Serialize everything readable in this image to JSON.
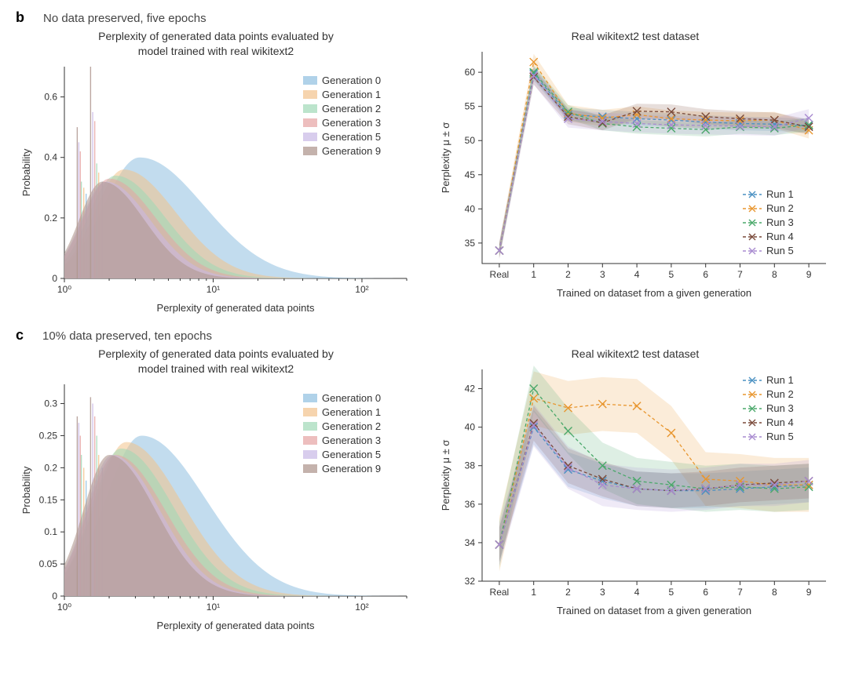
{
  "panel_b": {
    "label": "b",
    "subtitle": "No data preserved, five epochs",
    "hist": {
      "type": "histogram",
      "title": "Perplexity of generated data points evaluated by\nmodel trained with real wikitext2",
      "xlabel": "Perplexity of generated data points",
      "ylabel": "Probability",
      "x_scale": "log",
      "xlim": [
        1,
        200
      ],
      "x_ticks": [
        1,
        10,
        100
      ],
      "x_tick_labels": [
        "10⁰",
        "10¹",
        "10²"
      ],
      "ylim": [
        0,
        0.7
      ],
      "y_ticks": [
        0,
        0.2,
        0.4,
        0.6
      ],
      "background_color": "#ffffff",
      "legend_pos": "upper-right",
      "series": [
        {
          "name": "Generation 0",
          "color": "#8fbfe0",
          "alpha": 0.55,
          "mode": 3.2,
          "spread": 0.55,
          "peak": 0.4,
          "spikes": [
            [
              1.4,
              0.28
            ],
            [
              1.8,
              0.32
            ]
          ]
        },
        {
          "name": "Generation 1",
          "color": "#f2c28b",
          "alpha": 0.55,
          "mode": 2.5,
          "spread": 0.45,
          "peak": 0.36,
          "spikes": [
            [
              1.35,
              0.3
            ],
            [
              1.7,
              0.35
            ]
          ]
        },
        {
          "name": "Generation 2",
          "color": "#9fd8b6",
          "alpha": 0.55,
          "mode": 2.2,
          "spread": 0.42,
          "peak": 0.34,
          "spikes": [
            [
              1.3,
              0.32
            ],
            [
              1.65,
              0.38
            ]
          ]
        },
        {
          "name": "Generation 3",
          "color": "#e6a3a3",
          "alpha": 0.55,
          "mode": 2.0,
          "spread": 0.4,
          "peak": 0.33,
          "spikes": [
            [
              1.28,
              0.42
            ],
            [
              1.6,
              0.52
            ]
          ]
        },
        {
          "name": "Generation 5",
          "color": "#c8b8e6",
          "alpha": 0.55,
          "mode": 1.9,
          "spread": 0.38,
          "peak": 0.32,
          "spikes": [
            [
              1.25,
              0.45
            ],
            [
              1.55,
              0.55
            ]
          ]
        },
        {
          "name": "Generation 9",
          "color": "#b09890",
          "alpha": 0.6,
          "mode": 1.8,
          "spread": 0.36,
          "peak": 0.32,
          "spikes": [
            [
              1.22,
              0.5
            ],
            [
              1.5,
              0.7
            ]
          ]
        }
      ]
    },
    "line": {
      "type": "line",
      "title": "Real wikitext2 test dataset",
      "xlabel": "Trained on dataset from a given generation",
      "ylabel": "Perplexity μ ± σ",
      "xlim": [
        -0.5,
        9.5
      ],
      "x_ticks": [
        0,
        1,
        2,
        3,
        4,
        5,
        6,
        7,
        8,
        9
      ],
      "x_tick_labels": [
        "Real",
        "1",
        "2",
        "3",
        "4",
        "5",
        "6",
        "7",
        "8",
        "9"
      ],
      "ylim": [
        32,
        63
      ],
      "y_ticks": [
        35,
        40,
        45,
        50,
        55,
        60
      ],
      "background_color": "#ffffff",
      "legend_pos": "lower-right",
      "marker_size": 5,
      "line_width": 1.3,
      "dash": "4,3",
      "band_alpha": 0.18,
      "series": [
        {
          "name": "Run 1",
          "color": "#4a90c2",
          "marker": "x",
          "y": [
            33.9,
            59.8,
            53.8,
            53.5,
            53.2,
            53.0,
            52.7,
            52.5,
            52.4,
            52.2
          ],
          "err": 1.0
        },
        {
          "name": "Run 2",
          "color": "#e8962f",
          "marker": "x",
          "y": [
            33.9,
            61.5,
            54.0,
            53.3,
            53.8,
            53.2,
            53.0,
            52.9,
            53.0,
            51.5
          ],
          "err": 1.2
        },
        {
          "name": "Run 3",
          "color": "#4aa86a",
          "marker": "x",
          "y": [
            33.9,
            60.0,
            54.2,
            52.5,
            52.0,
            51.8,
            51.6,
            52.0,
            51.8,
            52.3
          ],
          "err": 1.0
        },
        {
          "name": "Run 4",
          "color": "#7a4a3a",
          "marker": "x",
          "y": [
            33.9,
            59.3,
            53.5,
            52.6,
            54.3,
            54.2,
            53.5,
            53.2,
            53.0,
            52.0
          ],
          "err": 1.1
        },
        {
          "name": "Run 5",
          "color": "#a88bd0",
          "marker": "x",
          "y": [
            33.9,
            59.5,
            53.2,
            52.8,
            52.5,
            52.3,
            52.2,
            52.1,
            52.0,
            53.3
          ],
          "err": 1.3
        }
      ]
    }
  },
  "panel_c": {
    "label": "c",
    "subtitle": "10% data preserved, ten epochs",
    "hist": {
      "type": "histogram",
      "title": "Perplexity of generated data points evaluated by\nmodel trained with real wikitext2",
      "xlabel": "Perplexity of generated data points",
      "ylabel": "Probability",
      "x_scale": "log",
      "xlim": [
        1,
        200
      ],
      "x_ticks": [
        1,
        10,
        100
      ],
      "x_tick_labels": [
        "10⁰",
        "10¹",
        "10²"
      ],
      "ylim": [
        0,
        0.33
      ],
      "y_ticks": [
        0,
        0.05,
        0.1,
        0.15,
        0.2,
        0.25,
        0.3
      ],
      "background_color": "#ffffff",
      "legend_pos": "upper-right",
      "series": [
        {
          "name": "Generation 0",
          "color": "#8fbfe0",
          "alpha": 0.55,
          "mode": 3.3,
          "spread": 0.55,
          "peak": 0.25,
          "spikes": [
            [
              1.4,
              0.18
            ],
            [
              1.8,
              0.2
            ]
          ]
        },
        {
          "name": "Generation 1",
          "color": "#f2c28b",
          "alpha": 0.55,
          "mode": 2.6,
          "spread": 0.48,
          "peak": 0.24,
          "spikes": [
            [
              1.35,
              0.2
            ],
            [
              1.7,
              0.22
            ]
          ]
        },
        {
          "name": "Generation 2",
          "color": "#9fd8b6",
          "alpha": 0.55,
          "mode": 2.4,
          "spread": 0.45,
          "peak": 0.23,
          "spikes": [
            [
              1.3,
              0.22
            ],
            [
              1.65,
              0.25
            ]
          ]
        },
        {
          "name": "Generation 3",
          "color": "#e6a3a3",
          "alpha": 0.55,
          "mode": 2.2,
          "spread": 0.43,
          "peak": 0.22,
          "spikes": [
            [
              1.28,
              0.25
            ],
            [
              1.6,
              0.28
            ]
          ]
        },
        {
          "name": "Generation 5",
          "color": "#c8b8e6",
          "alpha": 0.55,
          "mode": 2.1,
          "spread": 0.41,
          "peak": 0.22,
          "spikes": [
            [
              1.25,
              0.27
            ],
            [
              1.55,
              0.3
            ]
          ]
        },
        {
          "name": "Generation 9",
          "color": "#b09890",
          "alpha": 0.6,
          "mode": 2.0,
          "spread": 0.4,
          "peak": 0.22,
          "spikes": [
            [
              1.22,
              0.28
            ],
            [
              1.5,
              0.31
            ]
          ]
        }
      ]
    },
    "line": {
      "type": "line",
      "title": "Real wikitext2 test dataset",
      "xlabel": "Trained on dataset from a given generation",
      "ylabel": "Perplexity μ ± σ",
      "xlim": [
        -0.5,
        9.5
      ],
      "x_ticks": [
        0,
        1,
        2,
        3,
        4,
        5,
        6,
        7,
        8,
        9
      ],
      "x_tick_labels": [
        "Real",
        "1",
        "2",
        "3",
        "4",
        "5",
        "6",
        "7",
        "8",
        "9"
      ],
      "ylim": [
        32,
        43
      ],
      "y_ticks": [
        32,
        34,
        36,
        38,
        40,
        42
      ],
      "background_color": "#ffffff",
      "legend_pos": "upper-right",
      "marker_size": 5,
      "line_width": 1.3,
      "dash": "4,3",
      "band_alpha": 0.18,
      "series": [
        {
          "name": "Run 1",
          "color": "#4a90c2",
          "marker": "x",
          "y": [
            33.9,
            40.0,
            37.8,
            37.2,
            36.8,
            36.7,
            36.7,
            36.8,
            36.9,
            37.0
          ],
          "err": 0.9
        },
        {
          "name": "Run 2",
          "color": "#e8962f",
          "marker": "x",
          "y": [
            33.9,
            41.5,
            41.0,
            41.2,
            41.1,
            39.7,
            37.3,
            37.2,
            37.0,
            37.0
          ],
          "err": 1.4
        },
        {
          "name": "Run 3",
          "color": "#4aa86a",
          "marker": "x",
          "y": [
            33.9,
            42.0,
            39.8,
            38.0,
            37.2,
            37.0,
            36.8,
            36.9,
            36.8,
            36.9
          ],
          "err": 1.2
        },
        {
          "name": "Run 4",
          "color": "#7a4a3a",
          "marker": "x",
          "y": [
            33.9,
            40.2,
            38.0,
            37.3,
            36.8,
            36.7,
            36.8,
            37.0,
            37.1,
            37.2
          ],
          "err": 0.9
        },
        {
          "name": "Run 5",
          "color": "#a88bd0",
          "marker": "x",
          "y": [
            33.9,
            40.1,
            37.9,
            37.0,
            36.8,
            36.7,
            36.8,
            37.0,
            37.0,
            37.2
          ],
          "err": 1.1
        }
      ]
    }
  }
}
